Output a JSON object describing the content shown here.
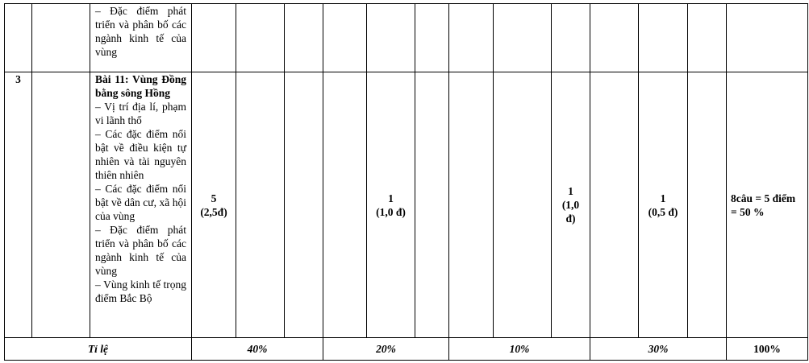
{
  "rows": [
    {
      "stt": "",
      "topic_lines": [
        "– Đặc điểm phát triển và phân bố các ngành kinh tế của vùng"
      ]
    },
    {
      "stt": "3",
      "topic_title": "Bài 11: Vùng Đồng bằng sông Hồng",
      "topic_lines": [
        "– Vị trí địa lí, phạm vi lãnh thổ",
        "– Các đặc điểm nổi bật về điều kiện tự nhiên và tài nguyên thiên nhiên",
        "– Các đặc điểm nổi bật về dân cư, xã hội của vùng",
        "– Đặc điểm phát triển và phân bố các ngành kinh tế của vùng",
        "– Vùng kinh tế trọng điểm Bắc Bộ"
      ],
      "cells": {
        "nhan_biet": {
          "count": "5",
          "score": "(2,5đ)"
        },
        "thong_hieu": {
          "count": "1",
          "score": "(1,0 đ)"
        },
        "van_dung": {
          "count": "1",
          "score": "(1,0 đ)"
        },
        "van_dung_cao": {
          "count": "1",
          "score": "(0,5 đ)"
        },
        "total": "8câu = 5 điểm = 50 %"
      }
    }
  ],
  "footer": {
    "label": "Tỉ lệ",
    "values": [
      "40%",
      "20%",
      "10%",
      "30%",
      "100%"
    ]
  }
}
